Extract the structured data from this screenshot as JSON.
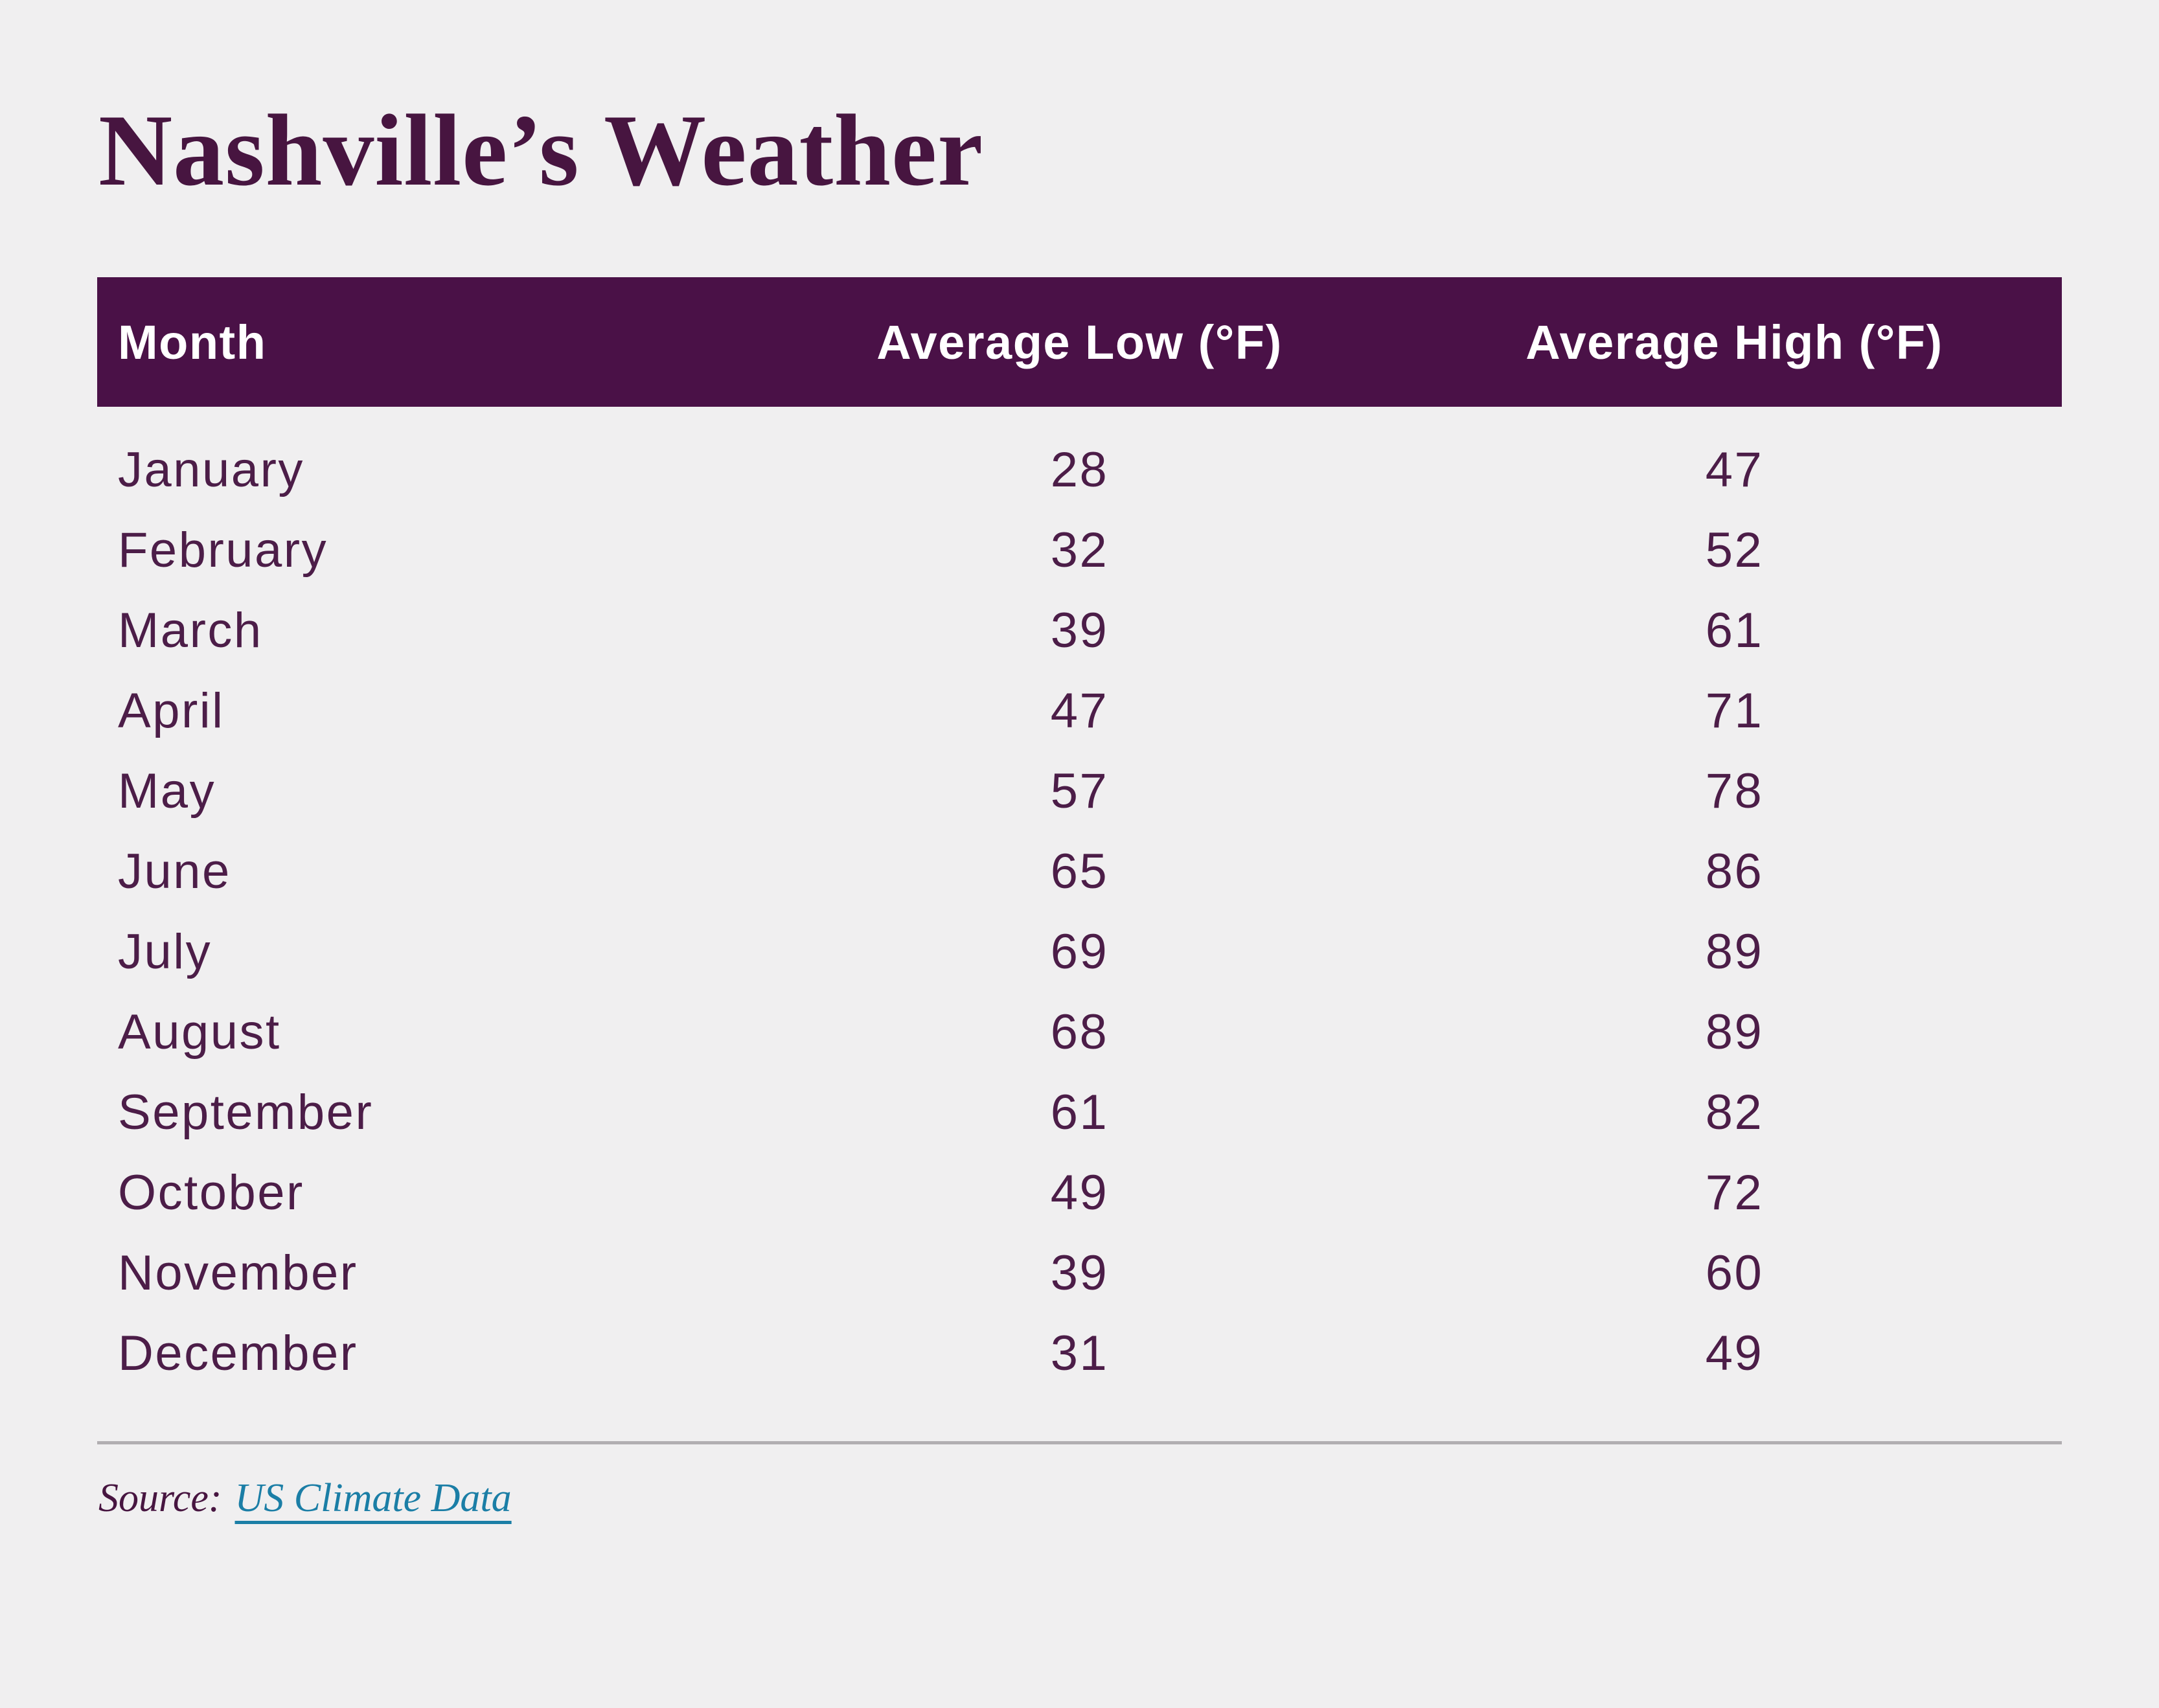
{
  "title": "Nashville’s Weather",
  "chart_data": {
    "type": "table",
    "title": "Nashville’s Weather",
    "columns": [
      "Month",
      "Average Low (°F)",
      "Average High (°F)"
    ],
    "categories": [
      "January",
      "February",
      "March",
      "April",
      "May",
      "June",
      "July",
      "August",
      "September",
      "October",
      "November",
      "December"
    ],
    "series": [
      {
        "name": "Average Low (°F)",
        "values": [
          28,
          32,
          39,
          47,
          57,
          65,
          69,
          68,
          61,
          49,
          39,
          31
        ]
      },
      {
        "name": "Average High (°F)",
        "values": [
          47,
          52,
          61,
          71,
          78,
          86,
          89,
          89,
          82,
          72,
          60,
          49
        ]
      }
    ],
    "source": "US Climate Data"
  },
  "source_line": {
    "label": "Source:",
    "link_text": "US Climate Data"
  },
  "colors": {
    "background": "#f0eff0",
    "header_bar": "#4a1147",
    "header_text": "#ffffff",
    "title_text": "#471540",
    "row_text": "#4c1d48",
    "link": "#1b7ea6",
    "divider": "#b1aeb1"
  }
}
